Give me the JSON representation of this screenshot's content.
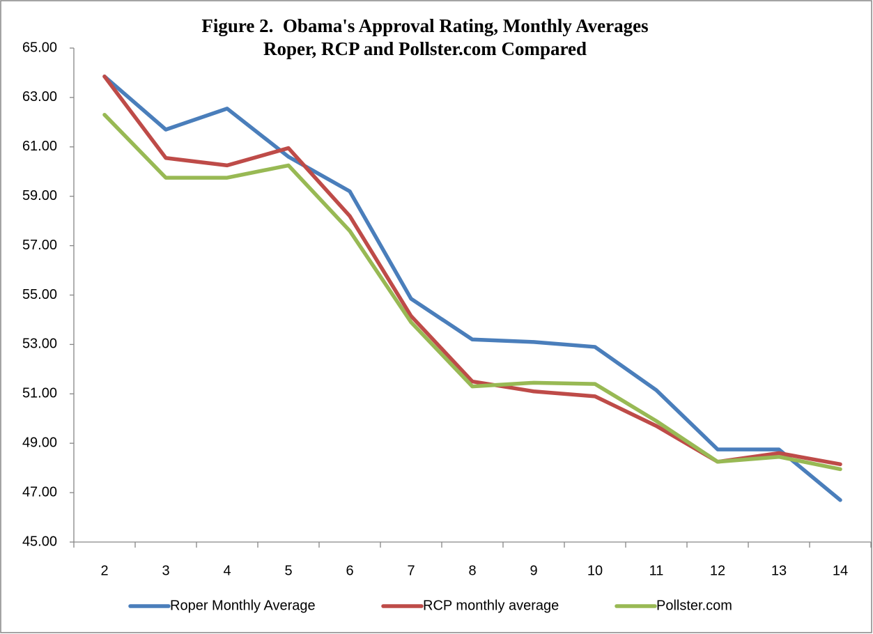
{
  "chart_data": {
    "type": "line",
    "title": "Figure 2.  Obama's Approval Rating, Monthly Averages",
    "subtitle": "Roper, RCP and Pollster.com Compared",
    "categories": [
      "2",
      "3",
      "4",
      "5",
      "6",
      "7",
      "8",
      "9",
      "10",
      "11",
      "12",
      "13",
      "14"
    ],
    "series": [
      {
        "name": "Roper Monthly Average",
        "color": "#4a7ebb",
        "values": [
          63.85,
          61.7,
          62.55,
          60.6,
          59.2,
          54.85,
          53.2,
          53.1,
          52.9,
          51.15,
          48.75,
          48.75,
          46.7
        ]
      },
      {
        "name": "RCP monthly average",
        "color": "#be4b48",
        "values": [
          63.85,
          60.55,
          60.25,
          60.95,
          58.2,
          54.15,
          51.5,
          51.1,
          50.9,
          49.7,
          48.25,
          48.6,
          48.15
        ]
      },
      {
        "name": "Pollster.com",
        "color": "#98b954",
        "values": [
          62.3,
          59.75,
          59.75,
          60.25,
          57.6,
          53.9,
          51.3,
          51.45,
          51.4,
          49.9,
          48.25,
          48.45,
          47.95
        ]
      }
    ],
    "ylim": [
      45,
      65
    ],
    "yticks": [
      {
        "value": 45,
        "label": "45.00"
      },
      {
        "value": 47,
        "label": "47.00"
      },
      {
        "value": 49,
        "label": "49.00"
      },
      {
        "value": 51,
        "label": "51.00"
      },
      {
        "value": 53,
        "label": "53.00"
      },
      {
        "value": 55,
        "label": "55.00"
      },
      {
        "value": 57,
        "label": "57.00"
      },
      {
        "value": 59,
        "label": "59.00"
      },
      {
        "value": 61,
        "label": "61.00"
      },
      {
        "value": 63,
        "label": "63.00"
      },
      {
        "value": 65,
        "label": "65.00"
      }
    ],
    "grid": false,
    "legend": "bottom"
  }
}
